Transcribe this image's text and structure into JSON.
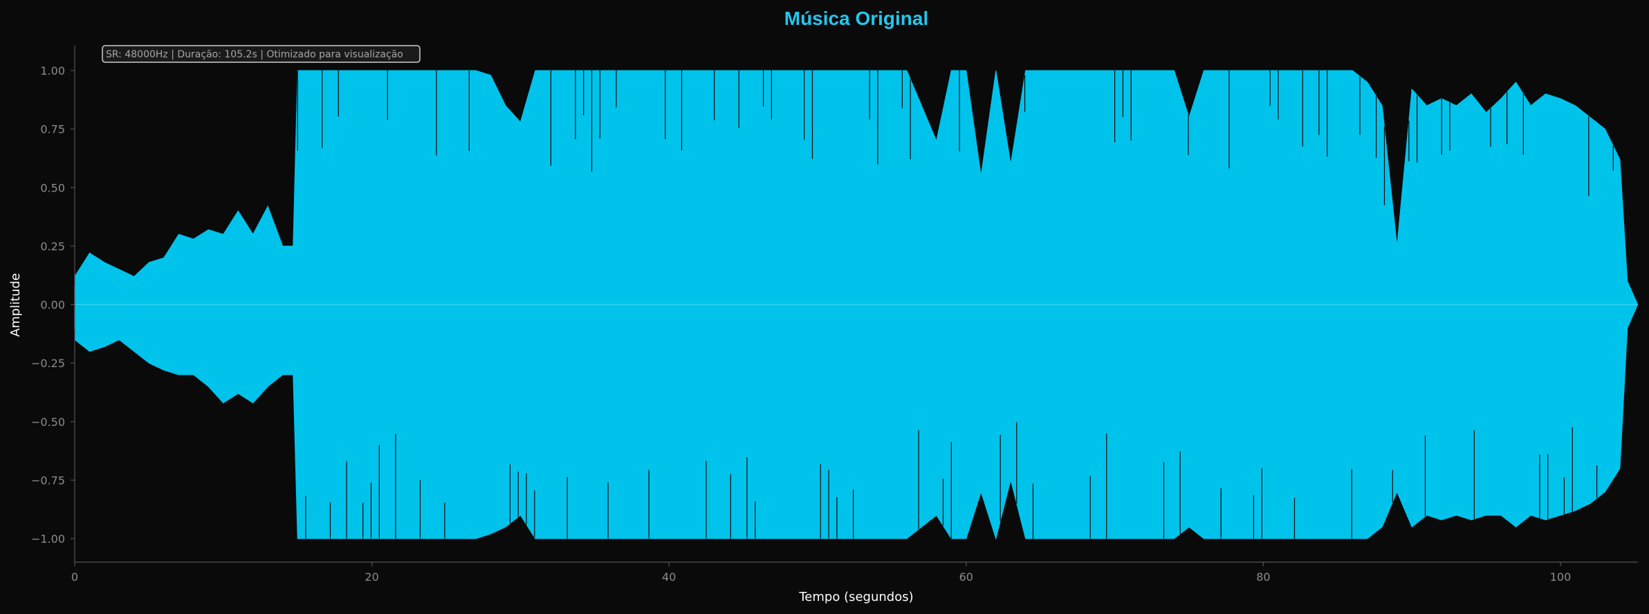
{
  "chart_data": {
    "type": "area",
    "title": "Música Original",
    "xlabel": "Tempo (segundos)",
    "ylabel": "Amplitude",
    "annotation": "SR: 48000Hz | Duração: 105.2s | Otimizado para visualização",
    "xlim": [
      0,
      105.2
    ],
    "ylim": [
      -1.1,
      1.1
    ],
    "xticks": [
      0,
      20,
      40,
      60,
      80,
      100
    ],
    "yticks": [
      -1.0,
      -0.75,
      -0.5,
      -0.25,
      0.0,
      0.25,
      0.5,
      0.75,
      1.0
    ],
    "grid": false,
    "series": [
      {
        "color": "#00c3ec",
        "x": [
          0,
          1,
          2,
          3,
          4,
          5,
          6,
          7,
          8,
          9,
          10,
          11,
          12,
          13,
          14,
          14.7,
          15,
          16,
          17,
          18,
          19,
          20,
          21,
          22,
          23,
          24,
          25,
          26,
          27,
          28,
          29,
          30,
          31,
          32,
          33,
          34,
          35,
          36,
          37,
          38,
          39,
          40,
          41,
          42,
          43,
          44,
          45,
          46,
          47,
          48,
          49,
          50,
          51,
          52,
          53,
          54,
          55,
          56,
          57,
          58,
          59,
          60,
          61,
          62,
          63,
          64,
          65,
          66,
          67,
          68,
          69,
          70,
          71,
          72,
          73,
          74,
          75,
          76,
          77,
          78,
          79,
          80,
          81,
          82,
          83,
          84,
          85,
          86,
          87,
          88,
          89,
          90,
          91,
          92,
          93,
          94,
          95,
          96,
          97,
          98,
          99,
          100,
          101,
          102,
          103,
          104,
          104.5,
          105.2
        ],
        "upper": [
          0.12,
          0.22,
          0.18,
          0.15,
          0.12,
          0.18,
          0.2,
          0.3,
          0.28,
          0.32,
          0.3,
          0.4,
          0.3,
          0.42,
          0.25,
          0.25,
          1.0,
          1.0,
          1.0,
          1.0,
          1.0,
          1.0,
          1.0,
          1.0,
          1.0,
          1.0,
          1.0,
          1.0,
          1.0,
          0.98,
          0.85,
          0.78,
          1.0,
          1.0,
          1.0,
          1.0,
          1.0,
          1.0,
          1.0,
          1.0,
          1.0,
          1.0,
          1.0,
          1.0,
          1.0,
          1.0,
          1.0,
          1.0,
          1.0,
          1.0,
          1.0,
          1.0,
          1.0,
          1.0,
          1.0,
          1.0,
          1.0,
          1.0,
          0.85,
          0.7,
          1.0,
          1.0,
          0.55,
          1.0,
          0.6,
          1.0,
          1.0,
          1.0,
          1.0,
          1.0,
          1.0,
          1.0,
          1.0,
          1.0,
          1.0,
          1.0,
          0.8,
          1.0,
          1.0,
          1.0,
          1.0,
          1.0,
          1.0,
          1.0,
          1.0,
          1.0,
          1.0,
          1.0,
          0.95,
          0.85,
          0.25,
          0.92,
          0.85,
          0.88,
          0.85,
          0.9,
          0.82,
          0.88,
          0.95,
          0.85,
          0.9,
          0.88,
          0.85,
          0.8,
          0.75,
          0.62,
          0.1,
          0.0
        ],
        "lower": [
          -0.15,
          -0.2,
          -0.18,
          -0.15,
          -0.2,
          -0.25,
          -0.28,
          -0.3,
          -0.3,
          -0.35,
          -0.42,
          -0.38,
          -0.42,
          -0.35,
          -0.3,
          -0.3,
          -1.0,
          -1.0,
          -1.0,
          -1.0,
          -1.0,
          -1.0,
          -1.0,
          -1.0,
          -1.0,
          -1.0,
          -1.0,
          -1.0,
          -1.0,
          -0.98,
          -0.95,
          -0.9,
          -1.0,
          -1.0,
          -1.0,
          -1.0,
          -1.0,
          -1.0,
          -1.0,
          -1.0,
          -1.0,
          -1.0,
          -1.0,
          -1.0,
          -1.0,
          -1.0,
          -1.0,
          -1.0,
          -1.0,
          -1.0,
          -1.0,
          -1.0,
          -1.0,
          -1.0,
          -1.0,
          -1.0,
          -1.0,
          -1.0,
          -0.95,
          -0.9,
          -1.0,
          -1.0,
          -0.8,
          -1.0,
          -0.75,
          -1.0,
          -1.0,
          -1.0,
          -1.0,
          -1.0,
          -1.0,
          -1.0,
          -1.0,
          -1.0,
          -1.0,
          -1.0,
          -0.95,
          -1.0,
          -1.0,
          -1.0,
          -1.0,
          -1.0,
          -1.0,
          -1.0,
          -1.0,
          -1.0,
          -1.0,
          -1.0,
          -1.0,
          -0.95,
          -0.8,
          -0.95,
          -0.9,
          -0.92,
          -0.9,
          -0.92,
          -0.9,
          -0.9,
          -0.95,
          -0.9,
          -0.92,
          -0.9,
          -0.88,
          -0.85,
          -0.8,
          -0.7,
          -0.1,
          0.0
        ]
      }
    ]
  }
}
